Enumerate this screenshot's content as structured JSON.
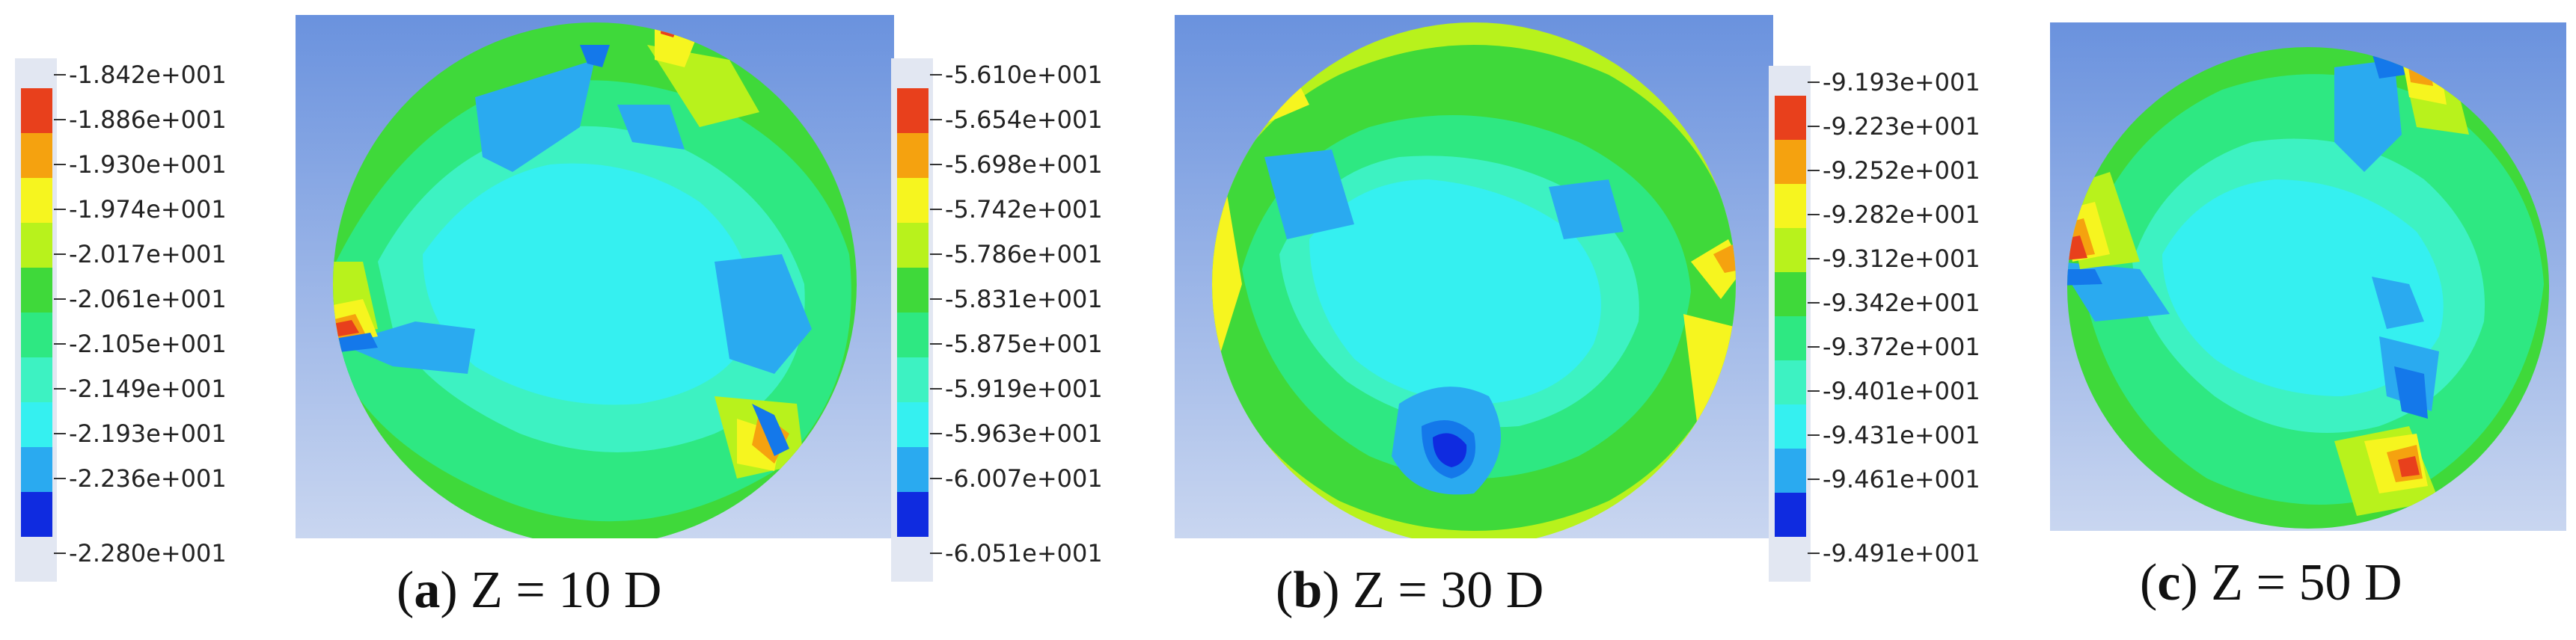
{
  "panels": [
    {
      "id": "a",
      "caption_letter": "a",
      "caption_text": "Z = 10 D",
      "legend_labels": [
        "-1.842e+001",
        "-1.886e+001",
        "-1.930e+001",
        "-1.974e+001",
        "-2.017e+001",
        "-2.061e+001",
        "-2.105e+001",
        "-2.149e+001",
        "-2.193e+001",
        "-2.236e+001",
        "-2.280e+001"
      ]
    },
    {
      "id": "b",
      "caption_letter": "b",
      "caption_text": "Z = 30 D",
      "legend_labels": [
        "-5.610e+001",
        "-5.654e+001",
        "-5.698e+001",
        "-5.742e+001",
        "-5.786e+001",
        "-5.831e+001",
        "-5.875e+001",
        "-5.919e+001",
        "-5.963e+001",
        "-6.007e+001",
        "-6.051e+001"
      ]
    },
    {
      "id": "c",
      "caption_letter": "c",
      "caption_text": "Z = 50 D",
      "legend_labels": [
        "-9.193e+001",
        "-9.223e+001",
        "-9.252e+001",
        "-9.282e+001",
        "-9.312e+001",
        "-9.342e+001",
        "-9.372e+001",
        "-9.401e+001",
        "-9.431e+001",
        "-9.461e+001",
        "-9.491e+001"
      ]
    }
  ],
  "color_scale": [
    "#e8401c",
    "#f5a20f",
    "#f6f51f",
    "#b8f21c",
    "#3fd93a",
    "#2ee882",
    "#3df2c2",
    "#35f0f0",
    "#2aaaf0",
    "#1478ea",
    "#0f2be0"
  ],
  "background_gradient": [
    "#6a92de",
    "#c9d6f0"
  ]
}
